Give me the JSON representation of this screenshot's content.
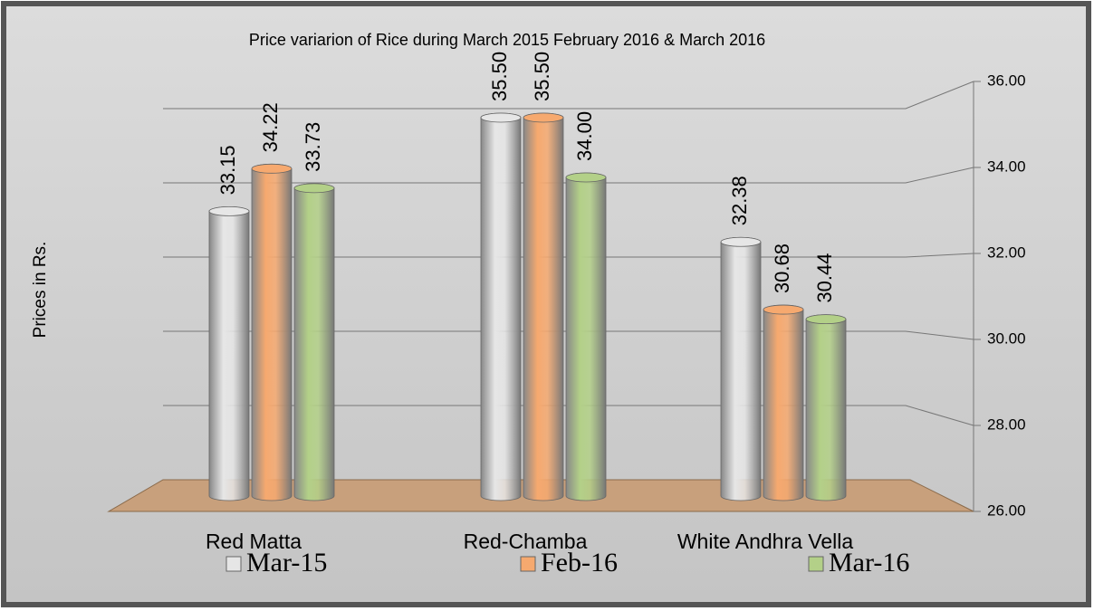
{
  "chart_data": {
    "type": "bar",
    "title": "Price variarion  of Rice during March 2015 February 2016 & March 2016",
    "y_label": "Prices in Rs.",
    "categories": [
      "Red Matta",
      "Red-Chamba",
      "White Andhra Vella"
    ],
    "series": [
      {
        "name": "Mar-15",
        "color": "#e6e6e6",
        "values": [
          33.15,
          35.5,
          32.38
        ],
        "value_labels": [
          "33.15",
          "35.50",
          "32.38"
        ]
      },
      {
        "name": "Feb-16",
        "color": "#f6a96f",
        "values": [
          34.22,
          35.5,
          30.68
        ],
        "value_labels": [
          "34.22",
          "35.50",
          "30.68"
        ]
      },
      {
        "name": "Mar-16",
        "color": "#b3d088",
        "values": [
          33.73,
          34.0,
          30.44
        ],
        "value_labels": [
          "33.73",
          "34.00",
          "30.44"
        ]
      }
    ],
    "ylim": [
      26,
      36
    ],
    "yticks": [
      {
        "value": 26,
        "label": "26.00"
      },
      {
        "value": 28,
        "label": "28.00"
      },
      {
        "value": 30,
        "label": "30.00"
      },
      {
        "value": 32,
        "label": "32.00"
      },
      {
        "value": 34,
        "label": "34.00"
      },
      {
        "value": 36,
        "label": "36.00"
      }
    ],
    "grid": true
  }
}
